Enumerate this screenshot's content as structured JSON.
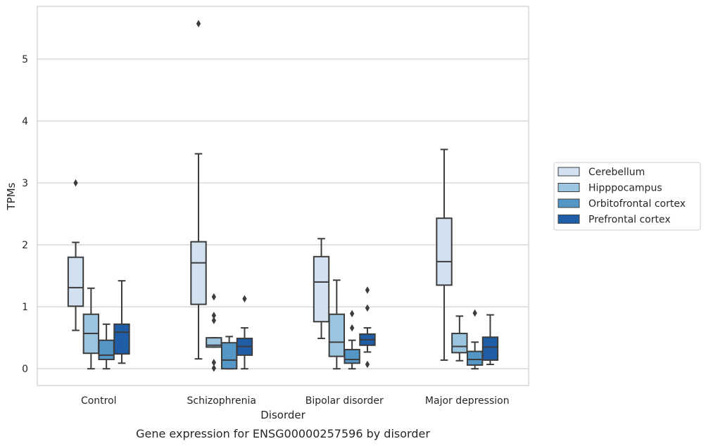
{
  "chart_data": {
    "type": "box",
    "caption": "Gene expression for ENSG00000257596 by disorder",
    "xlabel": "Disorder",
    "ylabel": "TPMs",
    "ylim": [
      -0.27,
      5.85
    ],
    "yticks": [
      0,
      1,
      2,
      3,
      4,
      5
    ],
    "grid": "horizontal",
    "legend_position": "right",
    "categories": [
      "Control",
      "Schizophrenia",
      "Bipolar disorder",
      "Major depression"
    ],
    "series": [
      {
        "name": "Cerebellum",
        "color": "#d1e1f0",
        "boxes": [
          {
            "whislo": 0.62,
            "q1": 1.01,
            "med": 1.31,
            "q3": 1.8,
            "whishi": 2.04,
            "fliers": [
              3.0
            ]
          },
          {
            "whislo": 0.16,
            "q1": 1.04,
            "med": 1.71,
            "q3": 2.05,
            "whishi": 3.47,
            "fliers": [
              5.57
            ]
          },
          {
            "whislo": 0.49,
            "q1": 0.76,
            "med": 1.4,
            "q3": 1.81,
            "whishi": 2.1,
            "fliers": []
          },
          {
            "whislo": 0.14,
            "q1": 1.35,
            "med": 1.73,
            "q3": 2.43,
            "whishi": 3.54,
            "fliers": []
          }
        ]
      },
      {
        "name": "Hipppocampus",
        "color": "#9ac4df",
        "boxes": [
          {
            "whislo": 0.0,
            "q1": 0.25,
            "med": 0.57,
            "q3": 0.88,
            "whishi": 1.3,
            "fliers": []
          },
          {
            "whislo": 0.35,
            "q1": 0.35,
            "med": 0.38,
            "q3": 0.5,
            "whishi": 0.5,
            "fliers": [
              1.16,
              0.86,
              0.78,
              0.1,
              0.01
            ]
          },
          {
            "whislo": 0.0,
            "q1": 0.2,
            "med": 0.43,
            "q3": 0.88,
            "whishi": 1.43,
            "fliers": []
          },
          {
            "whislo": 0.13,
            "q1": 0.26,
            "med": 0.36,
            "q3": 0.57,
            "whishi": 0.85,
            "fliers": []
          }
        ]
      },
      {
        "name": "Orbitofrontal cortex",
        "color": "#5497c7",
        "boxes": [
          {
            "whislo": 0.0,
            "q1": 0.15,
            "med": 0.22,
            "q3": 0.46,
            "whishi": 0.72,
            "fliers": []
          },
          {
            "whislo": 0.0,
            "q1": 0.0,
            "med": 0.14,
            "q3": 0.42,
            "whishi": 0.52,
            "fliers": []
          },
          {
            "whislo": 0.0,
            "q1": 0.09,
            "med": 0.15,
            "q3": 0.31,
            "whishi": 0.46,
            "fliers": [
              0.89,
              0.66
            ]
          },
          {
            "whislo": 0.0,
            "q1": 0.06,
            "med": 0.15,
            "q3": 0.28,
            "whishi": 0.43,
            "fliers": [
              0.9
            ]
          }
        ]
      },
      {
        "name": "Prefrontal cortex",
        "color": "#1f5da6",
        "boxes": [
          {
            "whislo": 0.09,
            "q1": 0.24,
            "med": 0.59,
            "q3": 0.72,
            "whishi": 1.42,
            "fliers": []
          },
          {
            "whislo": 0.0,
            "q1": 0.22,
            "med": 0.36,
            "q3": 0.49,
            "whishi": 0.66,
            "fliers": [
              1.13
            ]
          },
          {
            "whislo": 0.27,
            "q1": 0.38,
            "med": 0.47,
            "q3": 0.56,
            "whishi": 0.66,
            "fliers": [
              1.27,
              0.98,
              0.07
            ]
          },
          {
            "whislo": 0.07,
            "q1": 0.14,
            "med": 0.35,
            "q3": 0.51,
            "whishi": 0.87,
            "fliers": []
          }
        ]
      }
    ]
  }
}
